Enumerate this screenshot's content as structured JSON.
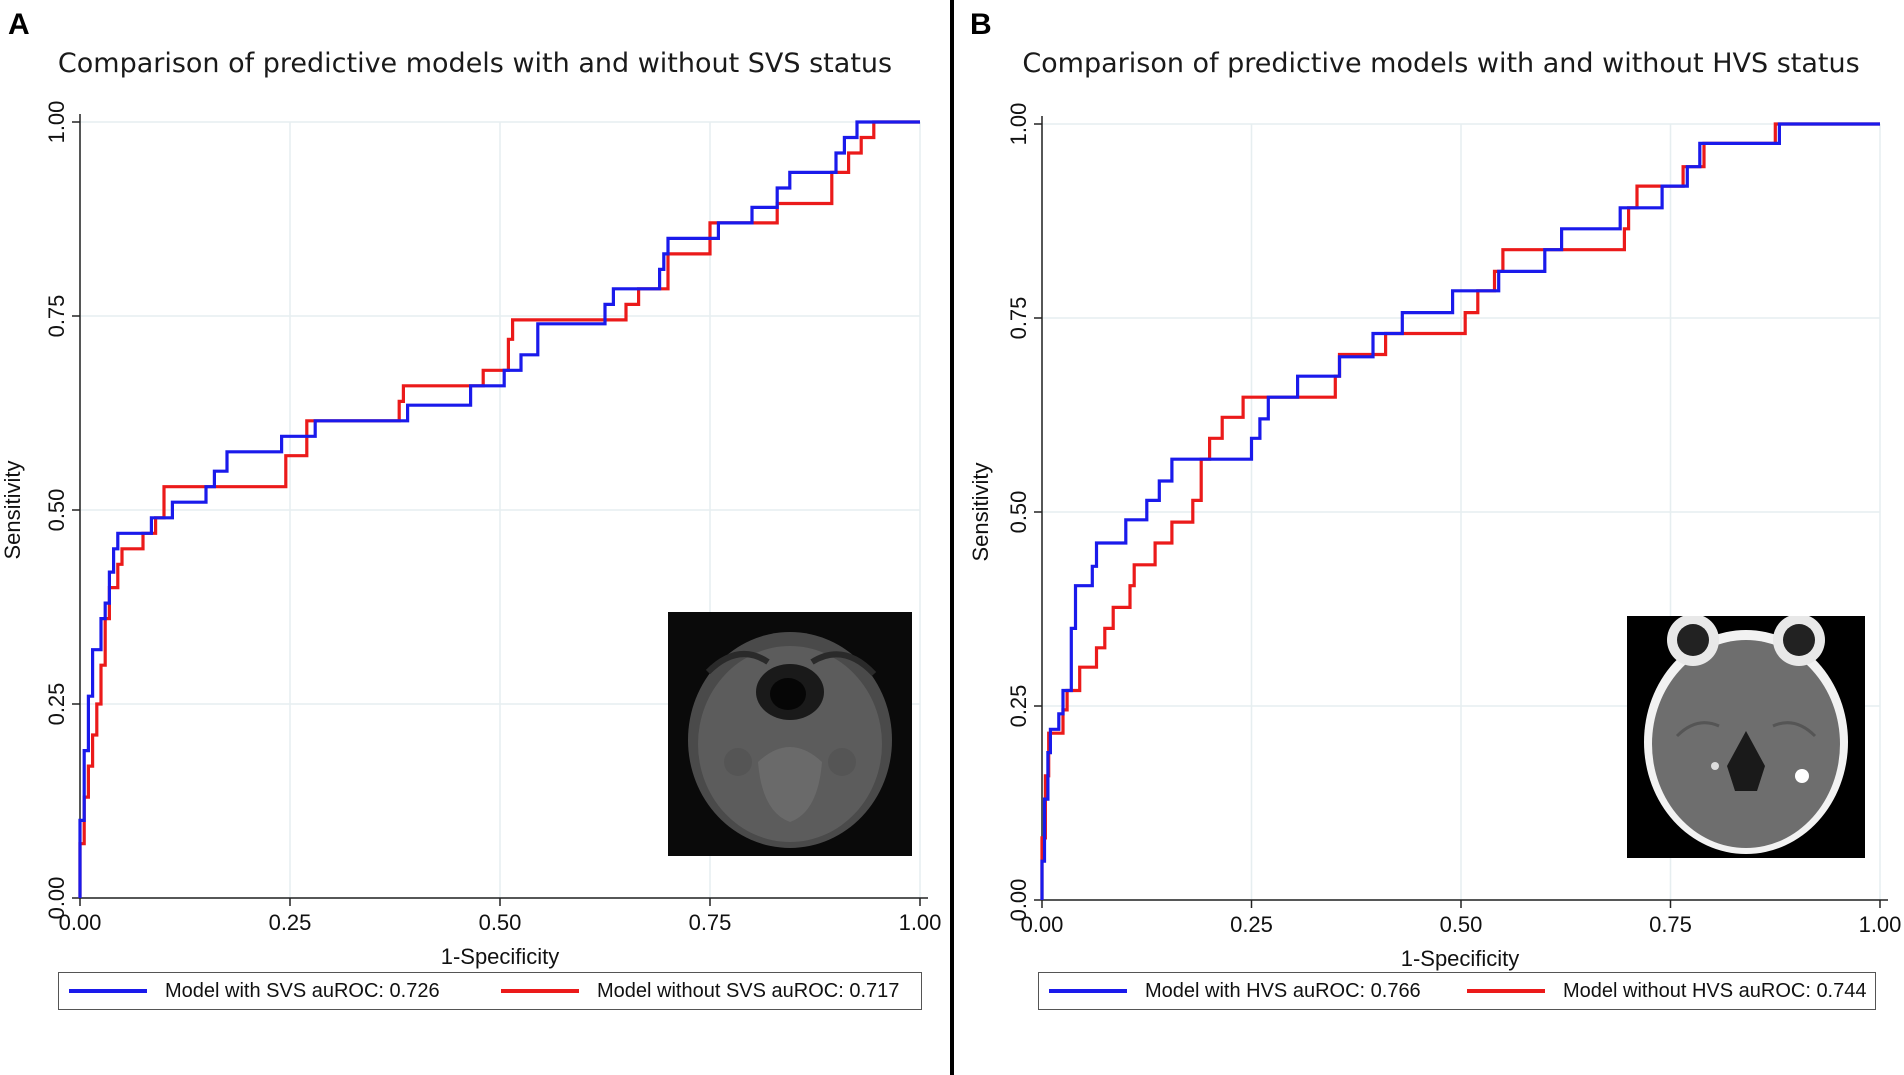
{
  "panels": [
    {
      "letter": "A",
      "title": "Comparison of predictive models with and without  SVS status",
      "xlabel": "1-Specificity",
      "ylabel": "Sensitivity",
      "legend": [
        "Model with SVS auROC: 0.726",
        "Model without SVS auROC: 0.717"
      ],
      "inset": "MRI susceptibility-weighted image"
    },
    {
      "letter": "B",
      "title": "Comparison of predictive models with and without  HVS status",
      "xlabel": "1-Specificity",
      "ylabel": "Sensitivity",
      "legend": [
        "Model with HVS auROC: 0.766",
        "Model without HVS auROC: 0.744"
      ],
      "inset": "Non-contrast CT image"
    }
  ],
  "colors": {
    "with_model": "#1a1aeb",
    "without_model": "#eb1a1a",
    "grid": "#e6eef0"
  },
  "chart_data": [
    {
      "type": "line",
      "title": "Comparison of predictive models with and without  SVS status",
      "xlabel": "1-Specificity",
      "ylabel": "Sensitivity",
      "xlim": [
        0,
        1
      ],
      "ylim": [
        0,
        1
      ],
      "xticks": [
        "0.00",
        "0.25",
        "0.50",
        "0.75",
        "1.00"
      ],
      "yticks": [
        "0.00",
        "0.25",
        "0.50",
        "0.75",
        "1.00"
      ],
      "series": [
        {
          "name": "Model with SVS auROC: 0.726",
          "color": "blue",
          "points": [
            [
              0,
              0
            ],
            [
              0,
              0.1
            ],
            [
              0.005,
              0.1
            ],
            [
              0.005,
              0.19
            ],
            [
              0.01,
              0.19
            ],
            [
              0.01,
              0.26
            ],
            [
              0.015,
              0.26
            ],
            [
              0.015,
              0.32
            ],
            [
              0.025,
              0.32
            ],
            [
              0.025,
              0.36
            ],
            [
              0.03,
              0.36
            ],
            [
              0.03,
              0.38
            ],
            [
              0.035,
              0.38
            ],
            [
              0.035,
              0.42
            ],
            [
              0.04,
              0.42
            ],
            [
              0.04,
              0.45
            ],
            [
              0.045,
              0.45
            ],
            [
              0.045,
              0.47
            ],
            [
              0.085,
              0.47
            ],
            [
              0.085,
              0.49
            ],
            [
              0.11,
              0.49
            ],
            [
              0.11,
              0.51
            ],
            [
              0.15,
              0.51
            ],
            [
              0.15,
              0.53
            ],
            [
              0.16,
              0.53
            ],
            [
              0.16,
              0.55
            ],
            [
              0.175,
              0.55
            ],
            [
              0.175,
              0.575
            ],
            [
              0.24,
              0.575
            ],
            [
              0.24,
              0.595
            ],
            [
              0.28,
              0.595
            ],
            [
              0.28,
              0.615
            ],
            [
              0.39,
              0.615
            ],
            [
              0.39,
              0.635
            ],
            [
              0.465,
              0.635
            ],
            [
              0.465,
              0.66
            ],
            [
              0.505,
              0.66
            ],
            [
              0.505,
              0.68
            ],
            [
              0.525,
              0.68
            ],
            [
              0.525,
              0.7
            ],
            [
              0.545,
              0.7
            ],
            [
              0.545,
              0.74
            ],
            [
              0.625,
              0.74
            ],
            [
              0.625,
              0.765
            ],
            [
              0.635,
              0.765
            ],
            [
              0.635,
              0.785
            ],
            [
              0.69,
              0.785
            ],
            [
              0.69,
              0.81
            ],
            [
              0.695,
              0.81
            ],
            [
              0.695,
              0.83
            ],
            [
              0.7,
              0.83
            ],
            [
              0.7,
              0.85
            ],
            [
              0.76,
              0.85
            ],
            [
              0.76,
              0.87
            ],
            [
              0.8,
              0.87
            ],
            [
              0.8,
              0.89
            ],
            [
              0.83,
              0.89
            ],
            [
              0.83,
              0.915
            ],
            [
              0.845,
              0.915
            ],
            [
              0.845,
              0.935
            ],
            [
              0.9,
              0.935
            ],
            [
              0.9,
              0.96
            ],
            [
              0.91,
              0.96
            ],
            [
              0.91,
              0.98
            ],
            [
              0.925,
              0.98
            ],
            [
              0.925,
              1.0
            ],
            [
              1,
              1
            ]
          ]
        },
        {
          "name": "Model without SVS auROC: 0.717",
          "color": "red",
          "points": [
            [
              0,
              0
            ],
            [
              0,
              0.07
            ],
            [
              0.005,
              0.07
            ],
            [
              0.005,
              0.13
            ],
            [
              0.01,
              0.13
            ],
            [
              0.01,
              0.17
            ],
            [
              0.015,
              0.17
            ],
            [
              0.015,
              0.21
            ],
            [
              0.02,
              0.21
            ],
            [
              0.02,
              0.25
            ],
            [
              0.025,
              0.25
            ],
            [
              0.025,
              0.3
            ],
            [
              0.03,
              0.3
            ],
            [
              0.03,
              0.36
            ],
            [
              0.035,
              0.36
            ],
            [
              0.035,
              0.4
            ],
            [
              0.045,
              0.4
            ],
            [
              0.045,
              0.43
            ],
            [
              0.05,
              0.43
            ],
            [
              0.05,
              0.45
            ],
            [
              0.075,
              0.45
            ],
            [
              0.075,
              0.47
            ],
            [
              0.09,
              0.47
            ],
            [
              0.09,
              0.49
            ],
            [
              0.1,
              0.49
            ],
            [
              0.1,
              0.53
            ],
            [
              0.245,
              0.53
            ],
            [
              0.245,
              0.57
            ],
            [
              0.27,
              0.57
            ],
            [
              0.27,
              0.615
            ],
            [
              0.38,
              0.615
            ],
            [
              0.38,
              0.64
            ],
            [
              0.385,
              0.64
            ],
            [
              0.385,
              0.66
            ],
            [
              0.48,
              0.66
            ],
            [
              0.48,
              0.68
            ],
            [
              0.51,
              0.68
            ],
            [
              0.51,
              0.72
            ],
            [
              0.515,
              0.72
            ],
            [
              0.515,
              0.745
            ],
            [
              0.65,
              0.745
            ],
            [
              0.65,
              0.765
            ],
            [
              0.665,
              0.765
            ],
            [
              0.665,
              0.785
            ],
            [
              0.7,
              0.785
            ],
            [
              0.7,
              0.83
            ],
            [
              0.75,
              0.83
            ],
            [
              0.75,
              0.87
            ],
            [
              0.83,
              0.87
            ],
            [
              0.83,
              0.895
            ],
            [
              0.895,
              0.895
            ],
            [
              0.895,
              0.935
            ],
            [
              0.915,
              0.935
            ],
            [
              0.915,
              0.96
            ],
            [
              0.93,
              0.96
            ],
            [
              0.93,
              0.98
            ],
            [
              0.945,
              0.98
            ],
            [
              0.945,
              1.0
            ],
            [
              1,
              1
            ]
          ]
        }
      ]
    },
    {
      "type": "line",
      "title": "Comparison of predictive models with and without  HVS status",
      "xlabel": "1-Specificity",
      "ylabel": "Sensitivity",
      "xlim": [
        0,
        1
      ],
      "ylim": [
        0,
        1
      ],
      "xticks": [
        "0.00",
        "0.25",
        "0.50",
        "0.75",
        "1.00"
      ],
      "yticks": [
        "0.00",
        "0.25",
        "0.50",
        "0.75",
        "1.00"
      ],
      "series": [
        {
          "name": "Model with HVS auROC: 0.766",
          "color": "blue",
          "points": [
            [
              0,
              0
            ],
            [
              0,
              0.05
            ],
            [
              0.003,
              0.05
            ],
            [
              0.003,
              0.13
            ],
            [
              0.007,
              0.13
            ],
            [
              0.007,
              0.19
            ],
            [
              0.01,
              0.19
            ],
            [
              0.01,
              0.22
            ],
            [
              0.02,
              0.22
            ],
            [
              0.02,
              0.24
            ],
            [
              0.025,
              0.24
            ],
            [
              0.025,
              0.27
            ],
            [
              0.035,
              0.27
            ],
            [
              0.035,
              0.35
            ],
            [
              0.04,
              0.35
            ],
            [
              0.04,
              0.405
            ],
            [
              0.06,
              0.405
            ],
            [
              0.06,
              0.43
            ],
            [
              0.065,
              0.43
            ],
            [
              0.065,
              0.46
            ],
            [
              0.1,
              0.46
            ],
            [
              0.1,
              0.49
            ],
            [
              0.125,
              0.49
            ],
            [
              0.125,
              0.515
            ],
            [
              0.14,
              0.515
            ],
            [
              0.14,
              0.54
            ],
            [
              0.155,
              0.54
            ],
            [
              0.155,
              0.568
            ],
            [
              0.25,
              0.568
            ],
            [
              0.25,
              0.595
            ],
            [
              0.26,
              0.595
            ],
            [
              0.26,
              0.62
            ],
            [
              0.27,
              0.62
            ],
            [
              0.27,
              0.648
            ],
            [
              0.305,
              0.648
            ],
            [
              0.305,
              0.675
            ],
            [
              0.355,
              0.675
            ],
            [
              0.355,
              0.7
            ],
            [
              0.395,
              0.7
            ],
            [
              0.395,
              0.73
            ],
            [
              0.43,
              0.73
            ],
            [
              0.43,
              0.757
            ],
            [
              0.49,
              0.757
            ],
            [
              0.49,
              0.785
            ],
            [
              0.545,
              0.785
            ],
            [
              0.545,
              0.81
            ],
            [
              0.6,
              0.81
            ],
            [
              0.6,
              0.838
            ],
            [
              0.62,
              0.838
            ],
            [
              0.62,
              0.865
            ],
            [
              0.69,
              0.865
            ],
            [
              0.69,
              0.892
            ],
            [
              0.74,
              0.892
            ],
            [
              0.74,
              0.92
            ],
            [
              0.77,
              0.92
            ],
            [
              0.77,
              0.945
            ],
            [
              0.785,
              0.945
            ],
            [
              0.785,
              0.975
            ],
            [
              0.88,
              0.975
            ],
            [
              0.88,
              1.0
            ],
            [
              1,
              1
            ]
          ]
        },
        {
          "name": "Model without HVS auROC: 0.744",
          "color": "red",
          "points": [
            [
              0,
              0
            ],
            [
              0,
              0.08
            ],
            [
              0.004,
              0.08
            ],
            [
              0.004,
              0.16
            ],
            [
              0.008,
              0.16
            ],
            [
              0.008,
              0.215
            ],
            [
              0.025,
              0.215
            ],
            [
              0.025,
              0.245
            ],
            [
              0.03,
              0.245
            ],
            [
              0.03,
              0.27
            ],
            [
              0.045,
              0.27
            ],
            [
              0.045,
              0.3
            ],
            [
              0.065,
              0.3
            ],
            [
              0.065,
              0.325
            ],
            [
              0.075,
              0.325
            ],
            [
              0.075,
              0.35
            ],
            [
              0.085,
              0.35
            ],
            [
              0.085,
              0.377
            ],
            [
              0.105,
              0.377
            ],
            [
              0.105,
              0.405
            ],
            [
              0.11,
              0.405
            ],
            [
              0.11,
              0.432
            ],
            [
              0.135,
              0.432
            ],
            [
              0.135,
              0.46
            ],
            [
              0.155,
              0.46
            ],
            [
              0.155,
              0.487
            ],
            [
              0.18,
              0.487
            ],
            [
              0.18,
              0.515
            ],
            [
              0.19,
              0.515
            ],
            [
              0.19,
              0.568
            ],
            [
              0.2,
              0.568
            ],
            [
              0.2,
              0.595
            ],
            [
              0.215,
              0.595
            ],
            [
              0.215,
              0.622
            ],
            [
              0.24,
              0.622
            ],
            [
              0.24,
              0.648
            ],
            [
              0.35,
              0.648
            ],
            [
              0.35,
              0.675
            ],
            [
              0.355,
              0.675
            ],
            [
              0.355,
              0.703
            ],
            [
              0.41,
              0.703
            ],
            [
              0.41,
              0.73
            ],
            [
              0.505,
              0.73
            ],
            [
              0.505,
              0.757
            ],
            [
              0.52,
              0.757
            ],
            [
              0.52,
              0.785
            ],
            [
              0.54,
              0.785
            ],
            [
              0.54,
              0.81
            ],
            [
              0.55,
              0.81
            ],
            [
              0.55,
              0.838
            ],
            [
              0.695,
              0.838
            ],
            [
              0.695,
              0.865
            ],
            [
              0.7,
              0.865
            ],
            [
              0.7,
              0.892
            ],
            [
              0.71,
              0.892
            ],
            [
              0.71,
              0.92
            ],
            [
              0.765,
              0.92
            ],
            [
              0.765,
              0.945
            ],
            [
              0.79,
              0.945
            ],
            [
              0.79,
              0.975
            ],
            [
              0.875,
              0.975
            ],
            [
              0.875,
              1.0
            ],
            [
              1,
              1
            ]
          ]
        }
      ]
    }
  ]
}
